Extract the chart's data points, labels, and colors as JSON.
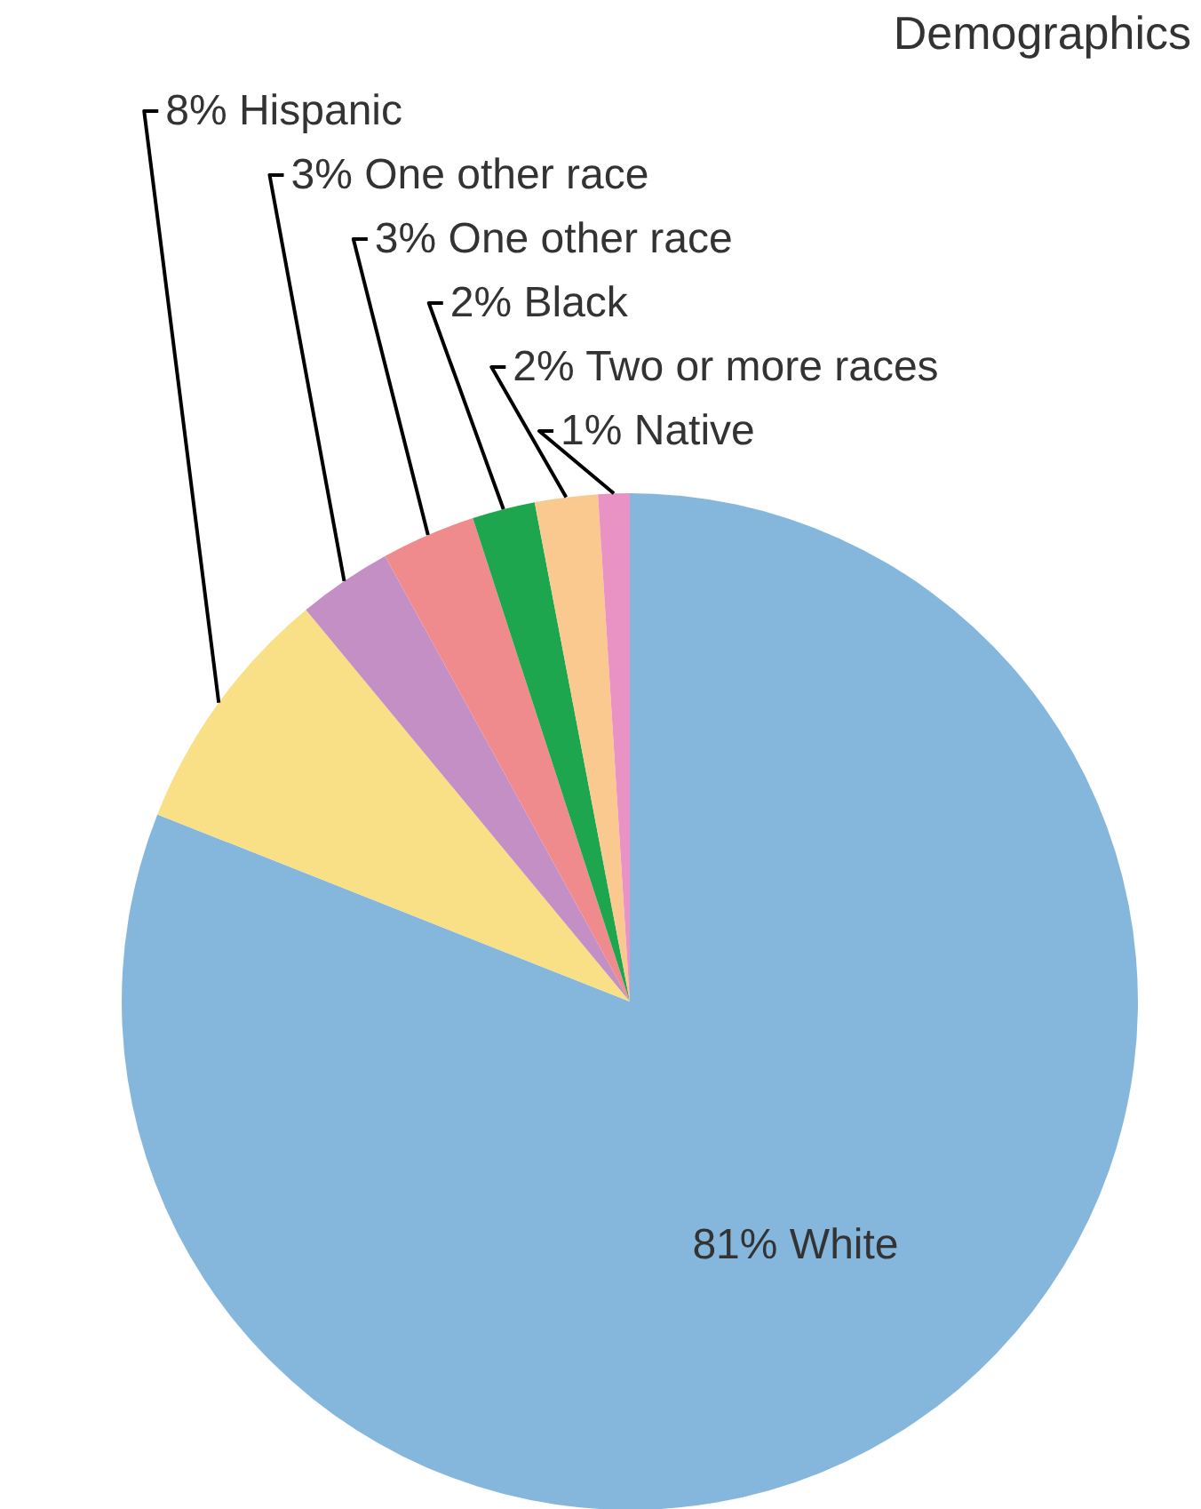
{
  "chart_data": {
    "type": "pie",
    "title": "Demographics",
    "categories": [
      "81% White",
      "8% Hispanic",
      "3% One other race",
      "3% One other race",
      "2% Black",
      "2% Two or more races",
      "1% Native"
    ],
    "values": [
      81,
      8,
      3,
      3,
      2,
      2,
      1
    ],
    "colors": [
      "#85b7dd",
      "#f9df86",
      "#c38fc4",
      "#f08b8d",
      "#1ea64f",
      "#f9c98f",
      "#e993c4"
    ]
  }
}
